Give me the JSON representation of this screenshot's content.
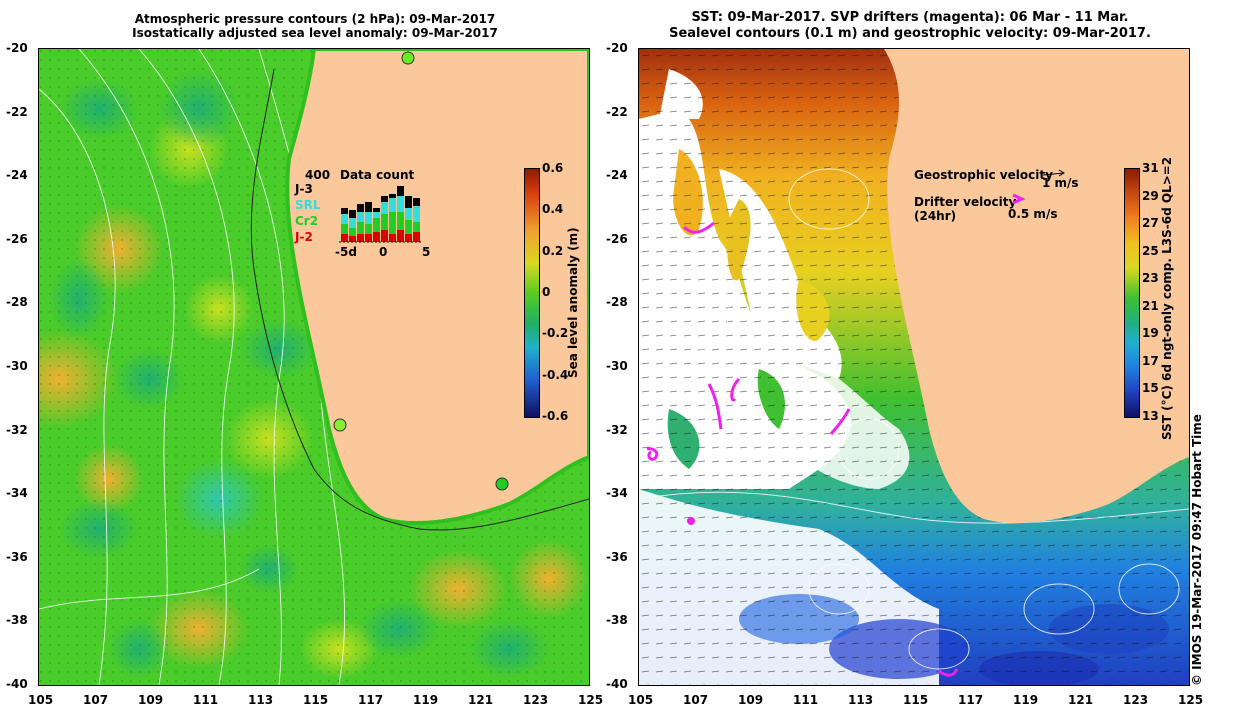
{
  "left_panel": {
    "title_line1": "Atmospheric pressure contours (2 hPa): 09-Mar-2017",
    "title_line2": "Isostatically adjusted sea level anomaly: 09-Mar-2017",
    "lat_labels": [
      "-20",
      "-22",
      "-24",
      "-26",
      "-28",
      "-30",
      "-32",
      "-34",
      "-36",
      "-38",
      "-40"
    ],
    "lon_labels": [
      "105",
      "107",
      "109",
      "111",
      "113",
      "115",
      "117",
      "119",
      "121",
      "123",
      "125"
    ],
    "colorbar": {
      "title": "Sea level anomaly (m)",
      "ticks": [
        "0.6",
        "0.4",
        "0.2",
        "0",
        "-0.2",
        "-0.4",
        "-0.6"
      ],
      "range": [
        -0.6,
        0.6
      ]
    },
    "data_count": {
      "title": "Data count",
      "max_label": "400",
      "x_ticks": [
        "-5d",
        "0",
        "5"
      ],
      "legend": [
        {
          "label": "J-3",
          "color": "#000000"
        },
        {
          "label": "SRL",
          "color": "#33dddd"
        },
        {
          "label": "Cr2",
          "color": "#22cc22"
        },
        {
          "label": "J-2",
          "color": "#dd0000"
        }
      ],
      "bars": [
        [
          8,
          10,
          10,
          6
        ],
        [
          6,
          8,
          10,
          8
        ],
        [
          8,
          12,
          10,
          8
        ],
        [
          8,
          10,
          12,
          10
        ],
        [
          10,
          14,
          6,
          4
        ],
        [
          12,
          16,
          12,
          6
        ],
        [
          8,
          22,
          14,
          4
        ],
        [
          12,
          18,
          16,
          10
        ],
        [
          8,
          14,
          12,
          12
        ],
        [
          10,
          10,
          16,
          8
        ]
      ]
    },
    "colors": {
      "land": "#fac89b",
      "ocean_base": "#44cc22"
    }
  },
  "right_panel": {
    "title_line1": "SST: 09-Mar-2017. SVP drifters (magenta): 06 Mar - 11 Mar.",
    "title_line2": "Sealevel contours (0.1 m) and geostrophic velocity: 09-Mar-2017.",
    "lat_labels": [
      "-20",
      "-22",
      "-24",
      "-26",
      "-28",
      "-30",
      "-32",
      "-34",
      "-36",
      "-38",
      "-40"
    ],
    "lon_labels": [
      "105",
      "107",
      "109",
      "111",
      "113",
      "115",
      "117",
      "119",
      "121",
      "123",
      "125"
    ],
    "colorbar": {
      "title": "SST (°C) 6d ngt-only comp. L3S-6d QL>=2",
      "ticks": [
        "31",
        "29",
        "27",
        "25",
        "23",
        "21",
        "19",
        "17",
        "15",
        "13"
      ],
      "range": [
        13,
        31
      ]
    },
    "legend": {
      "geostrophic": "Geostrophic velocity",
      "geostrophic_scale": "1 m/s",
      "drifter": "Drifter velocity",
      "drifter_sub": "(24hr)",
      "drifter_scale": "0.5 m/s"
    },
    "credit": "© IMOS 19-Mar-2017 09:47 Hobart Time",
    "colors": {
      "land": "#fac89b",
      "drifter": "#ee22ee"
    }
  }
}
